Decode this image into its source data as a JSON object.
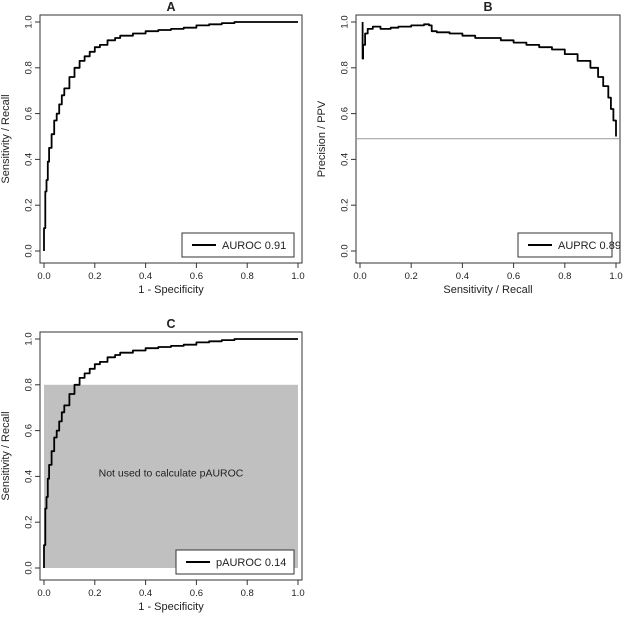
{
  "chart_data": [
    {
      "panel": "A",
      "type": "line",
      "title": "A",
      "xlabel": "1 - Specificity",
      "ylabel": "Sensitivity / Recall",
      "xlim": [
        0,
        1
      ],
      "ylim": [
        0,
        1
      ],
      "xticks": [
        "0.0",
        "0.2",
        "0.4",
        "0.6",
        "0.8",
        "1.0"
      ],
      "yticks": [
        "0.0",
        "0.2",
        "0.4",
        "0.6",
        "0.8",
        "1.0"
      ],
      "legend": {
        "placement": "bottom-right",
        "label": "AUROC 0.91"
      },
      "series": [
        {
          "x": [
            0.0,
            0.0,
            0.005,
            0.01,
            0.015,
            0.02,
            0.03,
            0.04,
            0.05,
            0.06,
            0.07,
            0.08,
            0.1,
            0.12,
            0.14,
            0.16,
            0.18,
            0.2,
            0.22,
            0.25,
            0.28,
            0.3,
            0.35,
            0.4,
            0.45,
            0.5,
            0.55,
            0.6,
            0.65,
            0.7,
            0.75,
            0.8,
            0.9,
            1.0
          ],
          "y": [
            0.0,
            0.1,
            0.26,
            0.31,
            0.39,
            0.45,
            0.51,
            0.57,
            0.6,
            0.64,
            0.68,
            0.71,
            0.76,
            0.8,
            0.83,
            0.85,
            0.87,
            0.89,
            0.9,
            0.92,
            0.93,
            0.94,
            0.95,
            0.96,
            0.965,
            0.97,
            0.975,
            0.985,
            0.99,
            0.995,
            1.0,
            1.0,
            1.0,
            1.0
          ]
        }
      ]
    },
    {
      "panel": "B",
      "type": "line",
      "title": "B",
      "xlabel": "Sensitivity / Recall",
      "ylabel": "Precision / PPV",
      "xlim": [
        0,
        1
      ],
      "ylim": [
        0,
        1
      ],
      "xticks": [
        "0.0",
        "0.2",
        "0.4",
        "0.6",
        "0.8",
        "1.0"
      ],
      "yticks": [
        "0.0",
        "0.2",
        "0.4",
        "0.6",
        "0.8",
        "1.0"
      ],
      "baseline": 0.49,
      "legend": {
        "placement": "bottom-right",
        "label": "AUPRC 0.89"
      },
      "series": [
        {
          "x": [
            0.01,
            0.01,
            0.012,
            0.02,
            0.03,
            0.05,
            0.08,
            0.1,
            0.12,
            0.15,
            0.2,
            0.25,
            0.27,
            0.28,
            0.3,
            0.35,
            0.4,
            0.45,
            0.5,
            0.55,
            0.6,
            0.65,
            0.7,
            0.75,
            0.8,
            0.85,
            0.9,
            0.93,
            0.95,
            0.97,
            0.98,
            0.99,
            1.0
          ],
          "y": [
            1.0,
            0.84,
            0.9,
            0.95,
            0.97,
            0.98,
            0.97,
            0.97,
            0.975,
            0.98,
            0.985,
            0.99,
            0.985,
            0.96,
            0.955,
            0.95,
            0.94,
            0.93,
            0.93,
            0.92,
            0.91,
            0.9,
            0.89,
            0.88,
            0.86,
            0.83,
            0.8,
            0.76,
            0.72,
            0.67,
            0.62,
            0.57,
            0.5
          ]
        }
      ]
    },
    {
      "panel": "C",
      "type": "line",
      "title": "C",
      "xlabel": "1 - Specificity",
      "ylabel": "Sensitivity / Recall",
      "xlim": [
        0,
        1
      ],
      "ylim": [
        0,
        1
      ],
      "xticks": [
        "0.0",
        "0.2",
        "0.4",
        "0.6",
        "0.8",
        "1.0"
      ],
      "yticks": [
        "0.0",
        "0.2",
        "0.4",
        "0.6",
        "0.8",
        "1.0"
      ],
      "shaded_region": {
        "ymax": 0.8,
        "color": "#c0c0c0"
      },
      "annotation": "Not used to calculate pAUROC",
      "legend": {
        "placement": "bottom-right",
        "label": "pAUROC 0.14"
      },
      "series": [
        {
          "x": [
            0.0,
            0.0,
            0.005,
            0.01,
            0.015,
            0.02,
            0.03,
            0.04,
            0.05,
            0.06,
            0.07,
            0.08,
            0.1,
            0.12,
            0.14,
            0.16,
            0.18,
            0.2,
            0.22,
            0.25,
            0.28,
            0.3,
            0.35,
            0.4,
            0.45,
            0.5,
            0.55,
            0.6,
            0.65,
            0.7,
            0.75,
            0.8,
            0.9,
            1.0
          ],
          "y": [
            0.0,
            0.1,
            0.26,
            0.31,
            0.39,
            0.45,
            0.51,
            0.57,
            0.6,
            0.64,
            0.68,
            0.71,
            0.76,
            0.8,
            0.83,
            0.85,
            0.87,
            0.89,
            0.9,
            0.92,
            0.93,
            0.94,
            0.95,
            0.96,
            0.965,
            0.97,
            0.975,
            0.985,
            0.99,
            0.995,
            1.0,
            1.0,
            1.0,
            1.0
          ]
        }
      ]
    }
  ]
}
